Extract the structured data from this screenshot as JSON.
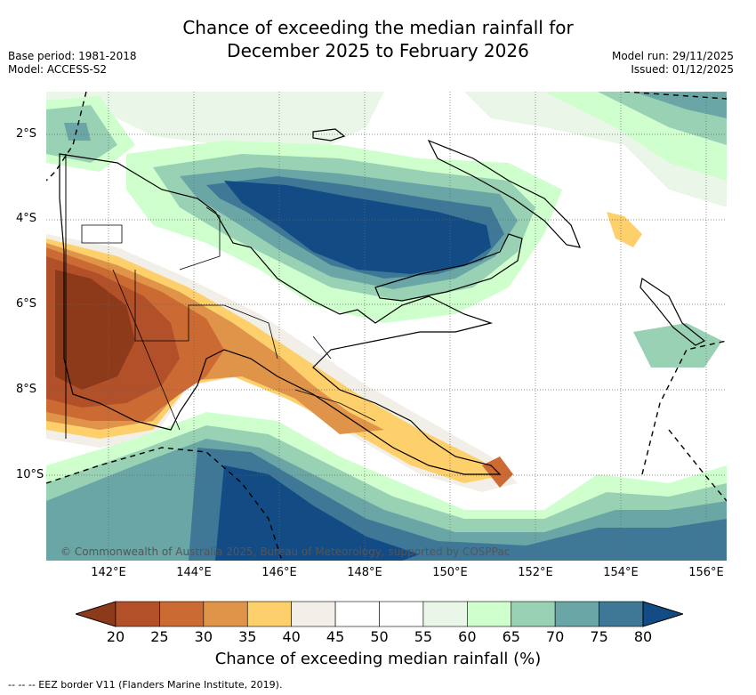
{
  "title": {
    "line1": "Chance of exceeding the median rainfall for",
    "line2": "December 2025 to February 2026"
  },
  "meta": {
    "base_period": "Base period: 1981-2018",
    "model": "Model: ACCESS-S2",
    "model_run": "Model run: 29/11/2025",
    "issued": "Issued: 01/12/2025"
  },
  "map": {
    "region": "Papua New Guinea",
    "copyright": "© Commonwealth of Australia 2025, Bureau of Meteorology, supported by COSPPac",
    "lat_labels": [
      "2°S",
      "4°S",
      "6°S",
      "8°S",
      "10°S"
    ],
    "lon_labels": [
      "142°E",
      "144°E",
      "146°E",
      "148°E",
      "150°E",
      "152°E",
      "154°E",
      "156°E"
    ],
    "ocean_color": "#ffffff"
  },
  "colorbar": {
    "ticks": [
      "20",
      "25",
      "30",
      "35",
      "40",
      "45",
      "50",
      "55",
      "60",
      "65",
      "70",
      "75",
      "80"
    ],
    "colors": [
      "#8c3a1a",
      "#b2502a",
      "#cc6a33",
      "#e0944a",
      "#fdd06b",
      "#f2eee8",
      "#ffffff",
      "#ffffff",
      "#eaf6e8",
      "#cfffcc",
      "#99d1b4",
      "#6aa6a6",
      "#3f7896",
      "#134b84"
    ],
    "label": "Chance of exceeding median rainfall (%)"
  },
  "legend": {
    "text": "-- -- -- EEZ border V11 (Flanders Marine Institute, 2019)."
  }
}
